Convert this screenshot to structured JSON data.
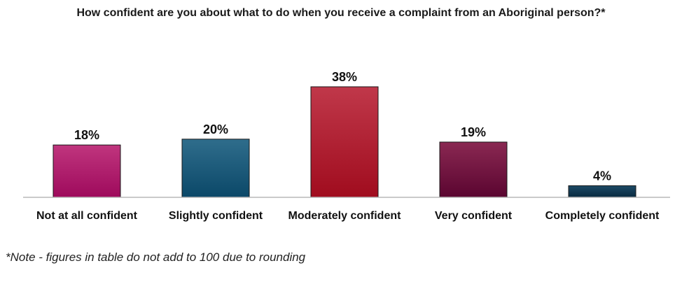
{
  "chart_data": {
    "type": "bar",
    "title": "How confident are you about what to do when you receive a complaint from an Aboriginal person?*",
    "categories": [
      "Not at all confident",
      "Slightly confident",
      "Moderately confident",
      "Very confident",
      "Completely confident"
    ],
    "values": [
      18,
      20,
      38,
      19,
      4
    ],
    "data_labels": [
      "18%",
      "20%",
      "38%",
      "19%",
      "4%"
    ],
    "value_unit": "%",
    "bar_colors": [
      [
        "#c0357e",
        "#9e0a5c"
      ],
      [
        "#2f6d8c",
        "#0b4868"
      ],
      [
        "#c0384a",
        "#a00c1e"
      ],
      [
        "#8a2852",
        "#5a0530"
      ],
      [
        "#1d4a66",
        "#082a40"
      ]
    ],
    "xlabel": "",
    "ylabel": "",
    "ylim": [
      0,
      40
    ],
    "grid": false,
    "legend": "none"
  },
  "note": "*Note - figures in table do not add to 100 due to rounding"
}
